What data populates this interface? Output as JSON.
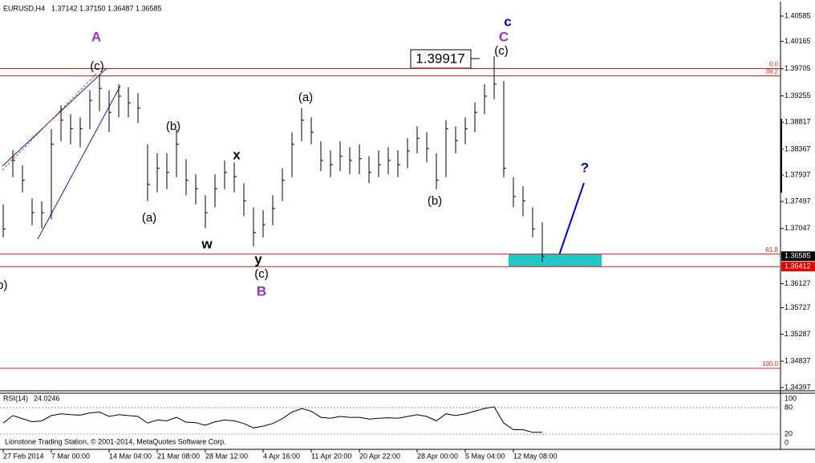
{
  "chart_data": {
    "type": "ohlc",
    "header": {
      "symbol": "EURUSD,H4",
      "open": "1.37142",
      "high": "1.37150",
      "low": "1.36487",
      "close": "1.36585"
    },
    "categories": [
      "27 Feb 2014",
      null,
      null,
      null,
      null,
      "7 Mar 00:00",
      null,
      null,
      null,
      null,
      null,
      "14 Mar 04:00",
      null,
      null,
      null,
      null,
      "21 Mar 08:00",
      null,
      null,
      null,
      null,
      "28 Mar 12:00",
      null,
      null,
      null,
      null,
      null,
      "4 Apr 16:00",
      null,
      null,
      null,
      null,
      "11 Apr 20:00",
      null,
      null,
      null,
      null,
      "20 Apr 22:00",
      null,
      null,
      null,
      null,
      null,
      "28 Apr 00:00",
      null,
      null,
      null,
      null,
      "5 May 04:00",
      null,
      null,
      null,
      null,
      "12 May 08:00",
      null,
      null,
      null
    ],
    "high": [
      1.3745,
      1.3835,
      1.381,
      1.3755,
      1.375,
      1.387,
      1.391,
      1.3895,
      1.389,
      1.3935,
      1.3962,
      1.3935,
      1.3945,
      1.394,
      1.393,
      1.3845,
      1.383,
      1.383,
      1.387,
      1.382,
      1.3795,
      1.376,
      1.3795,
      1.3818,
      1.3815,
      1.378,
      1.374,
      1.3735,
      1.376,
      1.3805,
      1.3865,
      1.3905,
      1.389,
      1.385,
      1.3835,
      1.385,
      1.384,
      1.3845,
      1.3825,
      1.3835,
      1.384,
      1.3835,
      1.3855,
      1.3875,
      1.3865,
      1.383,
      1.3885,
      1.3875,
      1.389,
      1.3915,
      1.3945,
      1.39917,
      1.395,
      1.379,
      1.3775,
      1.374,
      1.3715
    ],
    "low": [
      1.369,
      1.379,
      1.3765,
      1.371,
      1.3705,
      1.372,
      1.385,
      1.3845,
      1.384,
      1.387,
      1.39,
      1.3865,
      1.389,
      1.389,
      1.388,
      1.375,
      1.3765,
      1.377,
      1.379,
      1.376,
      1.3745,
      1.3705,
      1.374,
      1.377,
      1.3765,
      1.3725,
      1.3675,
      1.369,
      1.371,
      1.375,
      1.379,
      1.385,
      1.3845,
      1.38,
      1.379,
      1.38,
      1.3795,
      1.3795,
      1.378,
      1.379,
      1.3795,
      1.379,
      1.3805,
      1.383,
      1.3815,
      1.377,
      1.379,
      1.383,
      1.3845,
      1.3865,
      1.3895,
      1.392,
      1.379,
      1.374,
      1.3725,
      1.369,
      1.36487
    ],
    "close": [
      1.3704,
      1.3818,
      1.3785,
      1.3731,
      1.3731,
      1.3845,
      1.3885,
      1.3871,
      1.3871,
      1.3918,
      1.3938,
      1.3898,
      1.3925,
      1.3914,
      1.3905,
      1.3778,
      1.3805,
      1.3798,
      1.3845,
      1.3785,
      1.3771,
      1.3731,
      1.3771,
      1.3798,
      1.3791,
      1.3751,
      1.3698,
      1.3711,
      1.3738,
      1.3785,
      1.3845,
      1.3885,
      1.3865,
      1.3818,
      1.3811,
      1.3825,
      1.3818,
      1.3821,
      1.3798,
      1.3811,
      1.3818,
      1.3811,
      1.3834,
      1.3855,
      1.3838,
      1.3785,
      1.3871,
      1.3851,
      1.3871,
      1.3898,
      1.3925,
      1.3945,
      1.3805,
      1.3758,
      1.3751,
      1.3704,
      1.36585
    ],
    "color": "#000000",
    "ylim": [
      1.34344,
      1.40812
    ],
    "yticks": [
      1.40585,
      1.40165,
      1.39705,
      1.39255,
      1.38817,
      1.38367,
      1.37937,
      1.37497,
      1.37047,
      1.36127,
      1.35727,
      1.35287,
      1.34837,
      1.34397
    ],
    "levels": [
      {
        "label": "0.0",
        "price": 1.3971
      },
      {
        "label": "38.2",
        "price": 1.3959
      },
      {
        "label": "61.8",
        "price": 1.3662
      },
      {
        "label": "100.0",
        "price": 1.34718
      }
    ],
    "support": 1.36412,
    "zone": [
      1.36412,
      1.3662
    ],
    "annotations": [
      "A",
      "(c)",
      "(b)",
      "(a)",
      "w",
      "x",
      "y",
      "(c)",
      "B",
      "(a)",
      "(b)",
      "(c)",
      "C",
      "c",
      "?",
      "(b)"
    ],
    "rsi": {
      "name": "RSI(14)",
      "color": "#000000",
      "values": [
        45,
        62,
        55,
        48,
        50,
        62,
        66,
        64,
        63,
        68,
        70,
        60,
        64,
        62,
        60,
        45,
        52,
        50,
        58,
        47,
        46,
        40,
        48,
        52,
        50,
        44,
        34,
        38,
        44,
        55,
        70,
        78,
        72,
        58,
        56,
        60,
        58,
        58,
        54,
        56,
        57,
        56,
        60,
        64,
        60,
        50,
        66,
        62,
        66,
        72,
        78,
        82,
        45,
        30,
        30,
        24,
        24.0246
      ],
      "ylim": [
        0,
        100
      ],
      "yticks": [
        100,
        80,
        20,
        0
      ]
    },
    "copyright": "Lionstone Trading Station, © 2001-2014, MetaQuotes Software Corp."
  }
}
